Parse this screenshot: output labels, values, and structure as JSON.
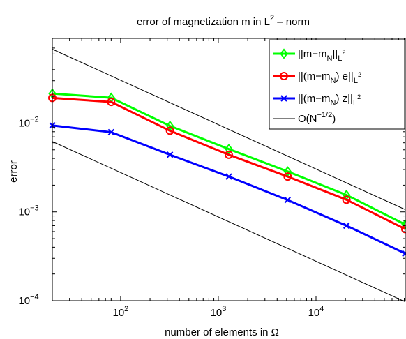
{
  "chart_data": {
    "type": "line",
    "title": "error of magnetization m in L",
    "title_sup": "2",
    "title_suffix": " – norm",
    "xlabel": "number of elements in Ω",
    "ylabel": "error",
    "x_scale": "log",
    "y_scale": "log",
    "xlim": [
      20,
      82000
    ],
    "ylim": [
      0.0001,
      0.09
    ],
    "x_ticks": [
      {
        "value": 100,
        "base": "10",
        "exp": "2"
      },
      {
        "value": 1000,
        "base": "10",
        "exp": "3"
      },
      {
        "value": 10000,
        "base": "10",
        "exp": "4"
      }
    ],
    "y_ticks": [
      {
        "value": 0.01,
        "base": "10",
        "exp": "−2"
      },
      {
        "value": 0.001,
        "base": "10",
        "exp": "−3"
      },
      {
        "value": 0.0001,
        "base": "10",
        "exp": "−4"
      }
    ],
    "grid": false,
    "legend_position": "top-right",
    "x": [
      20,
      80,
      320,
      1280,
      5120,
      20480,
      81920
    ],
    "series": [
      {
        "name": "||m−m_N||_{L^2}",
        "label_parts": {
          "pre": "||m−m",
          "sub1": "N",
          "mid": "||",
          "sub2": "L",
          "sup2": "2"
        },
        "color": "#00ff00",
        "marker": "diamond",
        "values": [
          0.0215,
          0.0193,
          0.0093,
          0.0051,
          0.00285,
          0.00155,
          0.00072
        ]
      },
      {
        "name": "||(m−m_N) e||_{L^2}",
        "label_parts": {
          "pre": "||(m−m",
          "sub1": "N",
          "mid": ") e||",
          "sub2": "L",
          "sup2": "2"
        },
        "color": "#ff0000",
        "marker": "circle",
        "values": [
          0.0192,
          0.0173,
          0.0082,
          0.0044,
          0.0025,
          0.00137,
          0.00064
        ]
      },
      {
        "name": "||(m−m_N) z||_{L^2}",
        "label_parts": {
          "pre": "||(m−m",
          "sub1": "N",
          "mid": ") z||",
          "sub2": "L",
          "sup2": "2"
        },
        "color": "#0000ff",
        "marker": "x",
        "values": [
          0.0094,
          0.0079,
          0.0044,
          0.0025,
          0.00136,
          0.0007,
          0.00034
        ]
      }
    ],
    "reference_lines": {
      "name": "O(N^{-1/2})",
      "label_parts": {
        "pre": "O(N",
        "sup": "−1/2",
        "post": ")"
      },
      "color": "#000000",
      "slope": -0.5,
      "lines": [
        {
          "x": [
            20,
            82000
          ],
          "y": [
            0.068,
            0.00106
          ]
        },
        {
          "x": [
            20,
            82000
          ],
          "y": [
            0.0062,
            9.7e-05
          ]
        }
      ]
    }
  }
}
